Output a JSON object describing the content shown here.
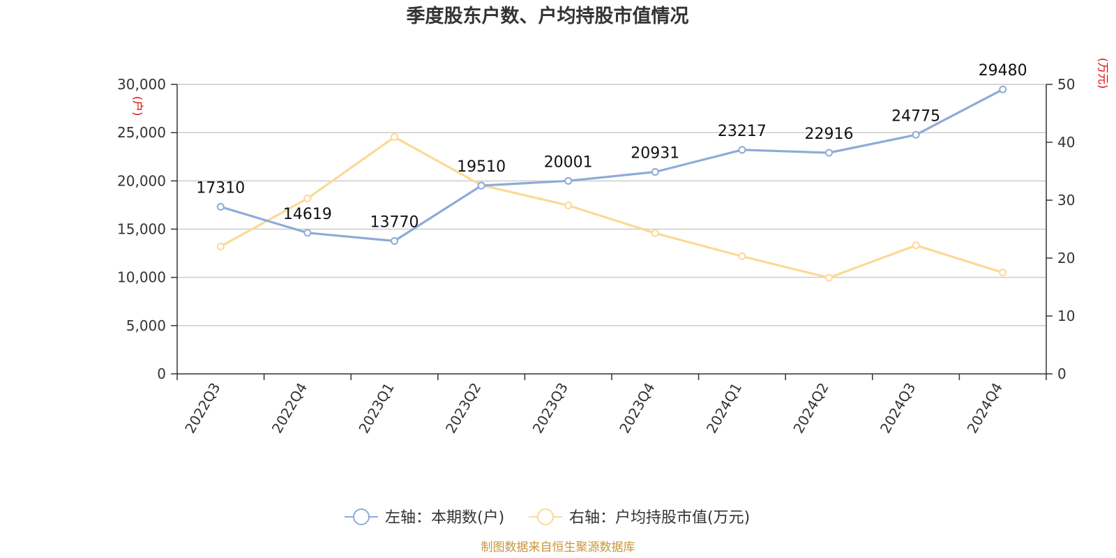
{
  "chart_data": {
    "type": "line",
    "title": "季度股东户数、户均持股市值情况",
    "categories": [
      "2022Q3",
      "2022Q4",
      "2023Q1",
      "2023Q2",
      "2023Q3",
      "2023Q4",
      "2024Q1",
      "2024Q2",
      "2024Q3",
      "2024Q4"
    ],
    "y_left": {
      "unit": "(户)",
      "ylim": [
        0,
        30000
      ],
      "ticks": [
        "0",
        "5,000",
        "10,000",
        "15,000",
        "20,000",
        "25,000",
        "30,000"
      ]
    },
    "y_right": {
      "unit": "(万元)",
      "ylim": [
        0,
        50
      ],
      "ticks": [
        "0",
        "10",
        "20",
        "30",
        "40",
        "50"
      ]
    },
    "grid": true,
    "legend_position": "bottom",
    "series": [
      {
        "name": "左轴：本期数(户)",
        "axis": "left",
        "color": "#8eabd7",
        "values": [
          17310,
          14619,
          13770,
          19510,
          20001,
          20931,
          23217,
          22916,
          24775,
          29480
        ],
        "labels": [
          "17310",
          "14619",
          "13770",
          "19510",
          "20001",
          "20931",
          "23217",
          "22916",
          "24775",
          "29480"
        ]
      },
      {
        "name": "右轴：户均持股市值(万元)",
        "axis": "right",
        "color": "#fbd996",
        "values": [
          22.0,
          30.3,
          40.9,
          32.6,
          29.1,
          24.3,
          20.3,
          16.6,
          22.2,
          17.5
        ]
      }
    ],
    "source": "制图数据来自恒生聚源数据库"
  }
}
